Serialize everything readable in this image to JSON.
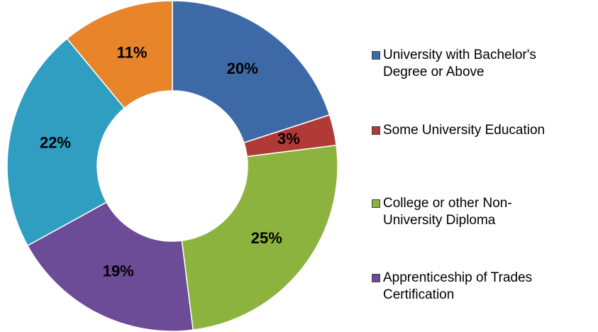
{
  "chart_data": {
    "type": "donut",
    "categories": [
      "University with Bachelor's Degree or Above",
      "Some University Education",
      "College or other Non-University Diploma",
      "Apprenticeship of Trades Certification",
      null,
      null
    ],
    "values": [
      20,
      3,
      25,
      19,
      22,
      11
    ],
    "value_labels": [
      "20%",
      "3%",
      "25%",
      "19%",
      "22%",
      "11%"
    ],
    "colors": [
      "#3d6aa6",
      "#b03a35",
      "#8db33f",
      "#6c4b97",
      "#2f9ec0",
      "#e8852b"
    ],
    "legend": "right"
  }
}
